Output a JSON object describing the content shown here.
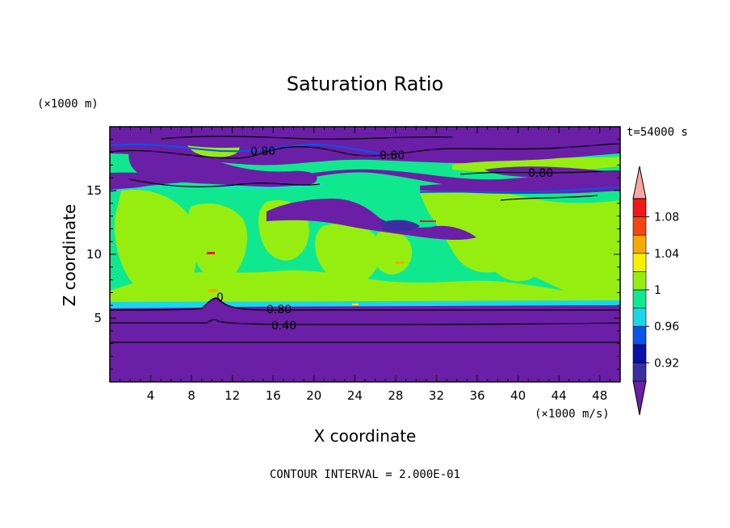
{
  "chart_data": {
    "type": "heatmap",
    "title": "Saturation Ratio",
    "xlabel": "X coordinate",
    "ylabel": "Z coordinate",
    "x_unit": "(×1000 m/s)",
    "y_unit": "(×1000 m)",
    "time_label": "t=54000 s",
    "footer": "CONTOUR INTERVAL = 2.000E-01",
    "xlim": [
      0,
      50
    ],
    "ylim": [
      0,
      20
    ],
    "x_ticks": [
      "4",
      "8",
      "12",
      "16",
      "20",
      "24",
      "28",
      "32",
      "36",
      "40",
      "44",
      "48"
    ],
    "y_ticks": [
      "5",
      "10",
      "15"
    ],
    "colorbar": {
      "levels": [
        0.9,
        0.92,
        0.94,
        0.96,
        0.98,
        1.0,
        1.02,
        1.04,
        1.06,
        1.08,
        1.1
      ],
      "tick_labels": [
        "0.92",
        "0.96",
        "1",
        "1.04",
        "1.08"
      ],
      "colors": [
        "#6a1fa6",
        "#3b2fa0",
        "#0a10a8",
        "#0a55e8",
        "#18d8e8",
        "#10e890",
        "#96ee10",
        "#f8f000",
        "#f8a800",
        "#f04810",
        "#f01818",
        "#f8a8a0"
      ]
    },
    "contour_labels": [
      "0.80",
      "0.80",
      "0.80",
      "0.80",
      "0.40",
      "0"
    ],
    "bands": [
      {
        "z": [
          0,
          5.9
        ],
        "level": "below"
      },
      {
        "z": [
          5.9,
          6.1
        ],
        "level": "0.98-1.00"
      },
      {
        "z": [
          6.1,
          15.0
        ],
        "level": "0.98-1.02"
      },
      {
        "z": [
          15.0,
          17.5
        ],
        "level": "below"
      },
      {
        "z": [
          17.5,
          20
        ],
        "level": "mixed"
      }
    ]
  }
}
